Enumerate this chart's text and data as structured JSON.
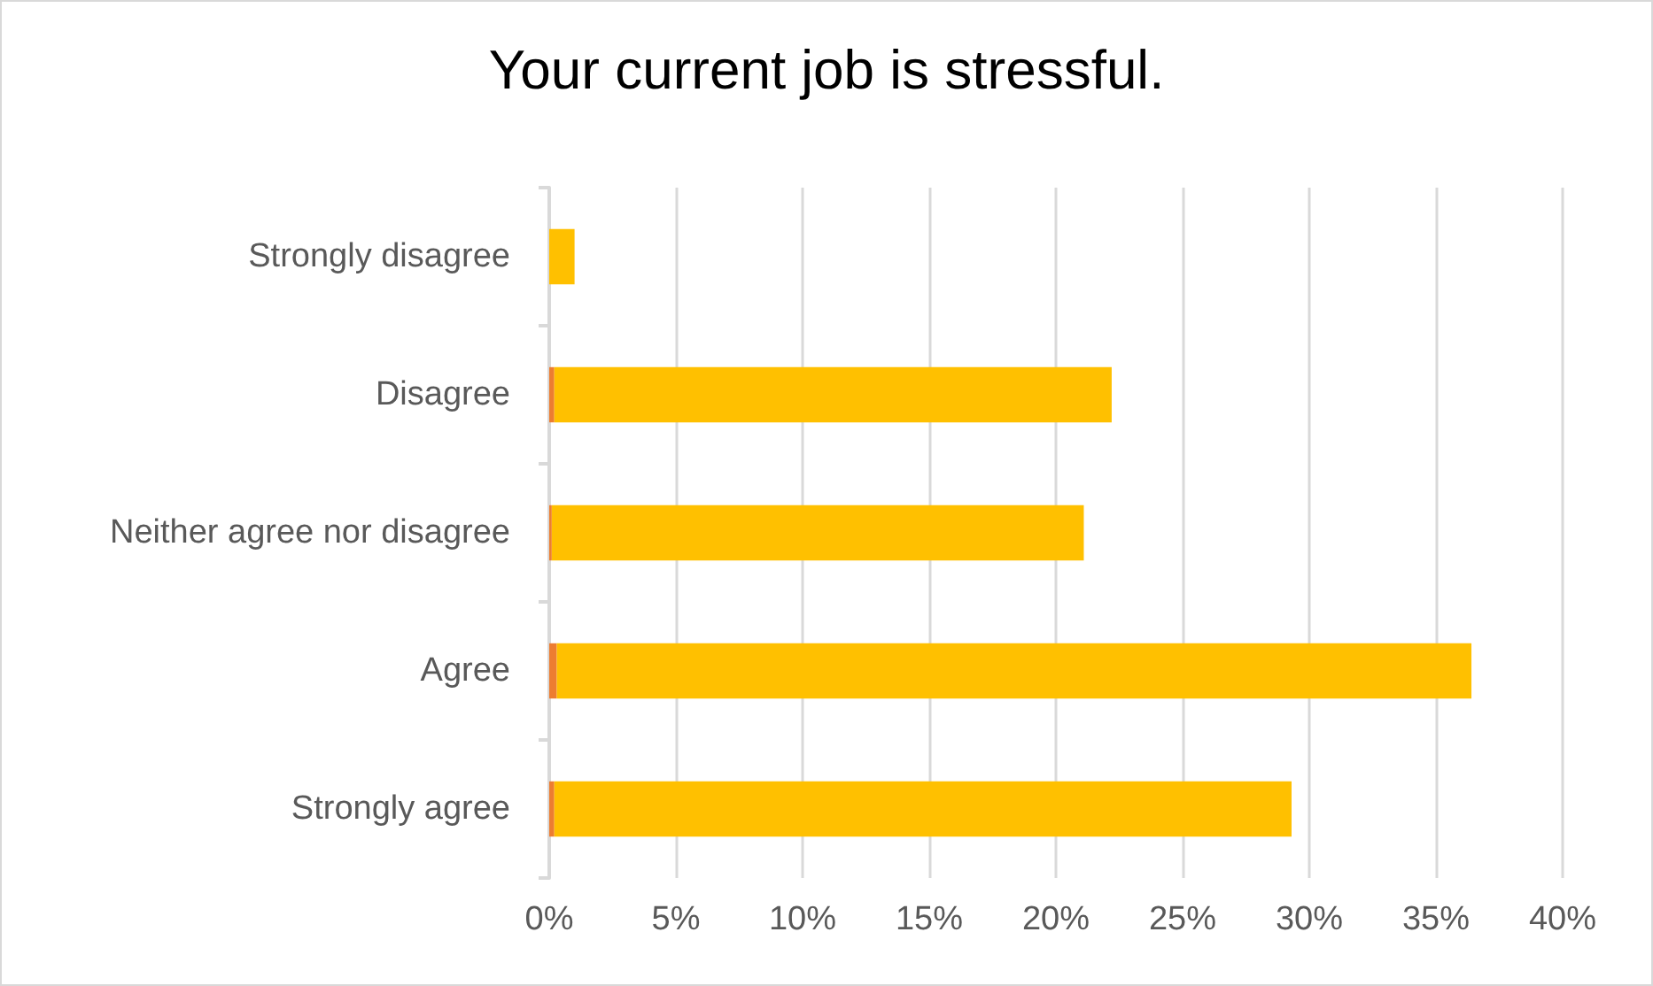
{
  "chart_data": {
    "type": "bar",
    "title": "Your current job is stressful.",
    "orientation": "horizontal",
    "stacked": true,
    "categories": [
      "Strongly disagree",
      "Disagree",
      "Neither agree nor disagree",
      "Agree",
      "Strongly agree"
    ],
    "series": [
      {
        "color": "#ed7d31",
        "values": [
          0,
          0.2,
          0.1,
          0.3,
          0.2
        ]
      },
      {
        "color": "#ffc000",
        "values": [
          1.0,
          22.0,
          21.0,
          36.1,
          29.1
        ]
      }
    ],
    "xlim": [
      0,
      40
    ],
    "xticks": [
      {
        "value": 0,
        "label": "0%"
      },
      {
        "value": 5,
        "label": "5%"
      },
      {
        "value": 10,
        "label": "10%"
      },
      {
        "value": 15,
        "label": "15%"
      },
      {
        "value": 20,
        "label": "20%"
      },
      {
        "value": 25,
        "label": "25%"
      },
      {
        "value": 30,
        "label": "30%"
      },
      {
        "value": 35,
        "label": "35%"
      },
      {
        "value": 40,
        "label": "40%"
      }
    ],
    "grid": "x"
  }
}
